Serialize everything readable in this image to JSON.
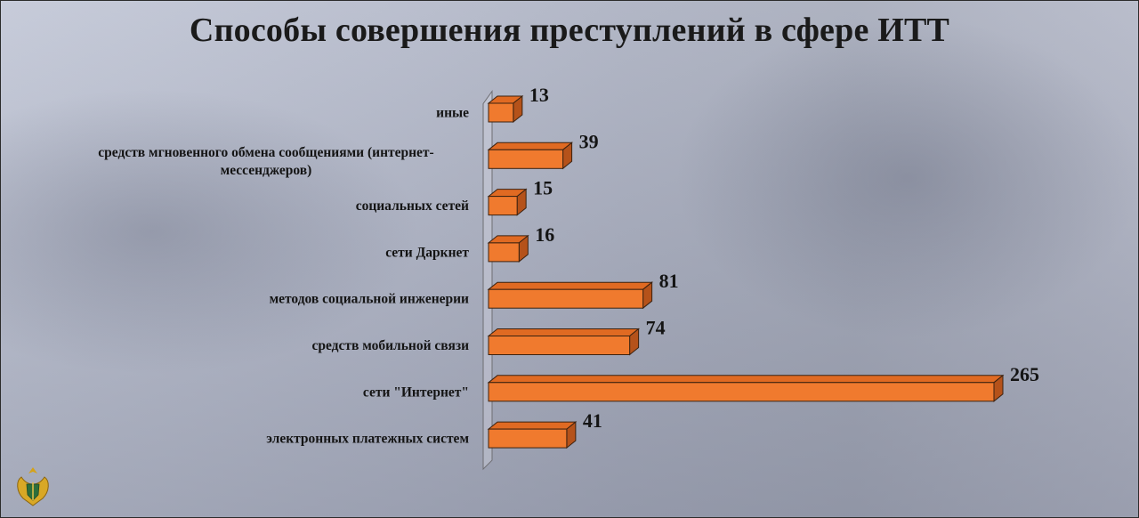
{
  "chart_data": {
    "type": "bar",
    "orientation": "horizontal",
    "title": "Способы совершения преступлений в сфере ИТТ",
    "categories": [
      "иные",
      "средств мгновенного обмена сообщениями (интернет-мессенджеров)",
      "социальных сетей",
      "сети Даркнет",
      "методов социальной инженерии",
      "средств мобильной связи",
      "сети \"Интернет\"",
      "электронных платежных систем"
    ],
    "category_lines": [
      [
        "иные"
      ],
      [
        "средств мгновенного обмена сообщениями (интернет-",
        "мессенджеров)"
      ],
      [
        "социальных сетей"
      ],
      [
        "сети Даркнет"
      ],
      [
        "методов социальной инженерии"
      ],
      [
        "средств мобильной связи"
      ],
      [
        "сети \"Интернет\""
      ],
      [
        "электронных платежных систем"
      ]
    ],
    "values": [
      13,
      39,
      15,
      16,
      81,
      74,
      265,
      41
    ],
    "xlim": [
      0,
      265
    ],
    "grid": false,
    "legend": "none",
    "bar_color": "#f07a2e"
  },
  "emblem": {
    "icon": "emblem-icon"
  }
}
